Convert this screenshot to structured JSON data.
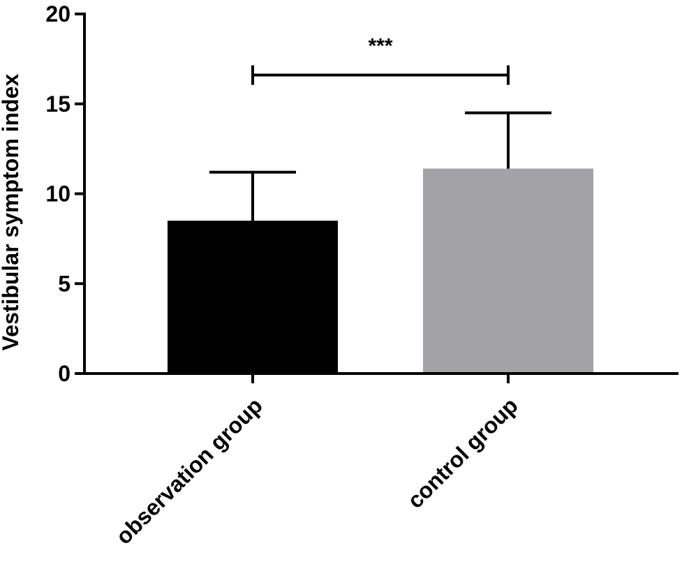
{
  "chart_data": {
    "type": "bar",
    "title": "",
    "xlabel": "",
    "ylabel": "Vestibular symptom index",
    "ylim": [
      0,
      20
    ],
    "yticks": [
      0,
      5,
      10,
      15,
      20
    ],
    "categories": [
      "observation group",
      "control group"
    ],
    "values": [
      8.5,
      11.4
    ],
    "error_upper": [
      11.2,
      14.5
    ],
    "bar_colors": [
      "#000000",
      "#a3a3a7"
    ],
    "significance": {
      "between": [
        0,
        1
      ],
      "label": "***",
      "level": 16.6
    },
    "grid": false,
    "legend": "none"
  }
}
